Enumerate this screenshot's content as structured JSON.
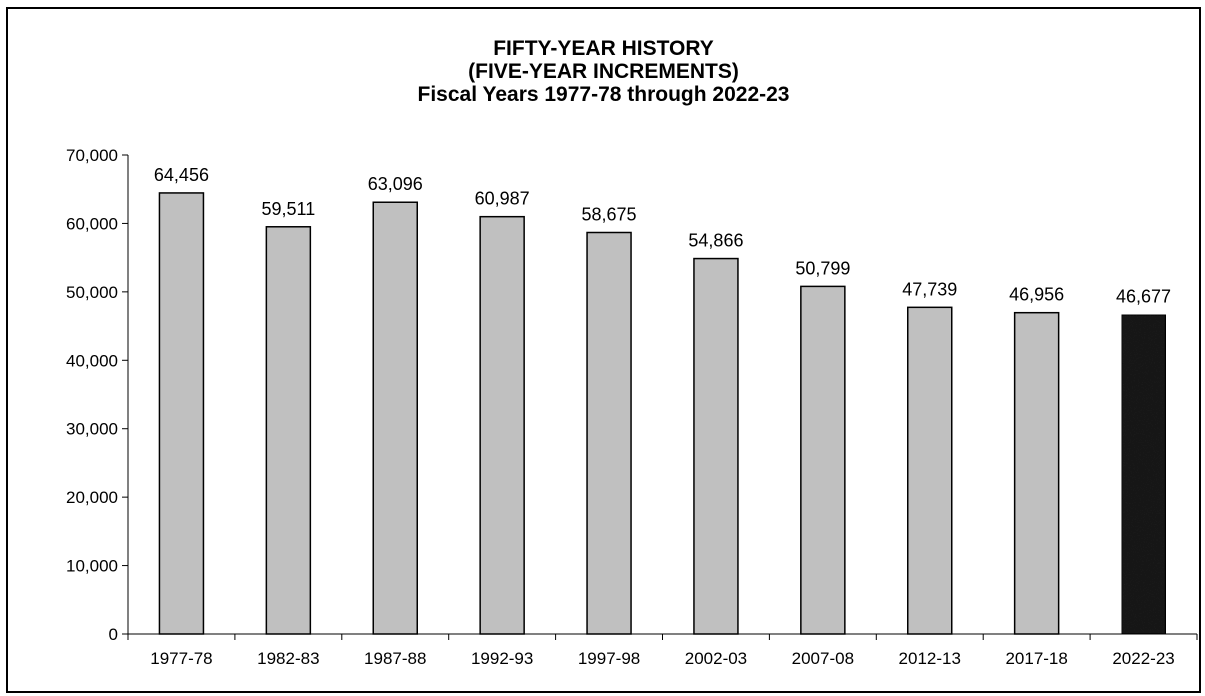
{
  "chart_data": {
    "type": "bar",
    "title": [
      "FIFTY-YEAR HISTORY",
      "(FIVE-YEAR INCREMENTS)",
      "Fiscal Years 1977-78 through 2022-23"
    ],
    "categories": [
      "1977-78",
      "1982-83",
      "1987-88",
      "1992-93",
      "1997-98",
      "2002-03",
      "2007-08",
      "2012-13",
      "2017-18",
      "2022-23"
    ],
    "values": [
      64456,
      59511,
      63096,
      60987,
      58675,
      54866,
      50799,
      47739,
      46956,
      46677
    ],
    "data_labels": [
      "64,456",
      "59,511",
      "63,096",
      "60,987",
      "58,675",
      "54,866",
      "50,799",
      "47,739",
      "46,956",
      "46,677"
    ],
    "ylim": [
      0,
      70000
    ],
    "yticks": [
      0,
      10000,
      20000,
      30000,
      40000,
      50000,
      60000,
      70000
    ],
    "ytick_labels": [
      "0",
      "10,000",
      "20,000",
      "30,000",
      "40,000",
      "50,000",
      "60,000",
      "70,000"
    ],
    "xlabel": "",
    "ylabel": "",
    "grid": false,
    "legend": "none",
    "colors": {
      "bar": "#c0c0c0",
      "highlight_bar": "#1c1c1c",
      "outline": "#000000"
    },
    "highlight_index": 9
  }
}
